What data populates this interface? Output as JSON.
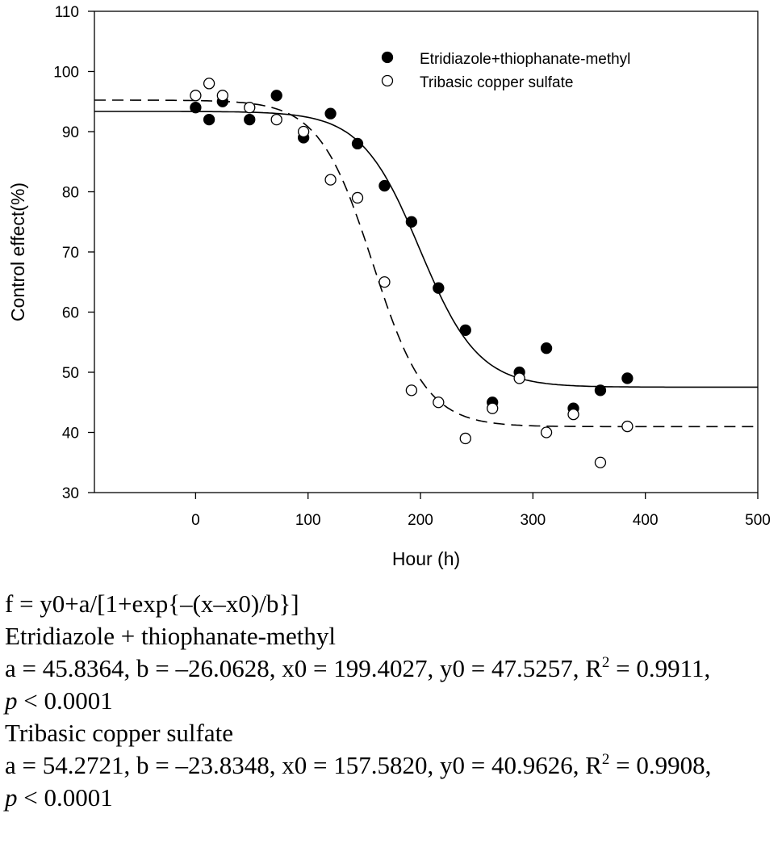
{
  "chart_data": {
    "type": "scatter",
    "title": "",
    "xlabel": "Hour (h)",
    "ylabel": "Control effect(%)",
    "xlim": [
      -90,
      500
    ],
    "ylim": [
      30,
      110
    ],
    "xticks": [
      0,
      100,
      200,
      300,
      400,
      500
    ],
    "yticks": [
      30,
      40,
      50,
      60,
      70,
      80,
      90,
      100,
      110
    ],
    "grid": false,
    "legend_position": "top-right",
    "series": [
      {
        "name": "Etridiazole+thiophanate-methyl",
        "marker": "filled-circle",
        "line_style": "solid",
        "color": "#000000",
        "x": [
          0,
          12,
          24,
          48,
          72,
          96,
          120,
          144,
          168,
          192,
          216,
          240,
          264,
          288,
          312,
          336,
          360,
          384
        ],
        "y": [
          94,
          92,
          95,
          92,
          96,
          89,
          93,
          88,
          81,
          75,
          64,
          57,
          45,
          50,
          54,
          44,
          47,
          49
        ],
        "fit": {
          "a": 45.8364,
          "b": -26.0628,
          "x0": 199.4027,
          "y0": 47.5257
        }
      },
      {
        "name": "Tribasic copper sulfate",
        "marker": "open-circle",
        "line_style": "dashed",
        "color": "#000000",
        "x": [
          0,
          12,
          24,
          48,
          72,
          96,
          120,
          144,
          168,
          192,
          216,
          240,
          264,
          288,
          312,
          336,
          360,
          384
        ],
        "y": [
          96,
          98,
          96,
          94,
          92,
          90,
          82,
          79,
          65,
          47,
          45,
          39,
          44,
          49,
          40,
          43,
          35,
          41
        ],
        "fit": {
          "a": 54.2721,
          "b": -23.8348,
          "x0": 157.582,
          "y0": 40.9626
        }
      }
    ]
  },
  "notes": {
    "formula": "f = y0+a/[1+exp{–(x–x0)/b}]",
    "series1_name": "Etridiazole + thiophanate-methyl",
    "series1_params": "a = 45.8364, b = –26.0628, x0 = 199.4027, y0 = 47.5257, R",
    "series1_r2_tail": " = 0.9911,",
    "series2_name": "Tribasic copper sulfate",
    "series2_params": "a = 54.2721, b = –23.8348, x0 = 157.5820, y0 = 40.9626, R",
    "series2_r2_tail": " = 0.9908,",
    "exponent": "2",
    "p_symbol": "p",
    "p_value": " < 0.0001"
  }
}
